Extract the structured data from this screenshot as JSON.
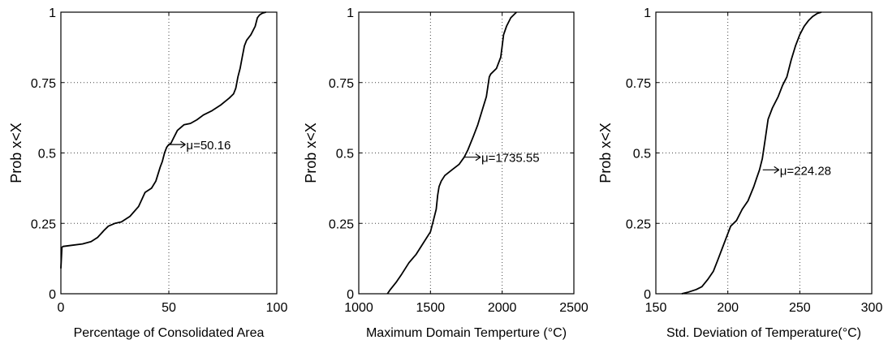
{
  "chart_data": [
    {
      "type": "line",
      "title": "",
      "xlabel": "Percentage of Consolidated Area",
      "ylabel": "Prob x<X",
      "xlim": [
        0,
        100
      ],
      "ylim": [
        0,
        1
      ],
      "xticks": [
        "0",
        "50",
        "100"
      ],
      "yticks": [
        "0",
        "0.25",
        "0.5",
        "0.75",
        "1"
      ],
      "grid": true,
      "annotation": "μ=50.16",
      "annotation_x": 50.16,
      "annotation_y": 0.53,
      "x": [
        0,
        0.5,
        1,
        5,
        10,
        14,
        17,
        20,
        22,
        25,
        28,
        32,
        36,
        39,
        42,
        44,
        46,
        47,
        48,
        49,
        50,
        51,
        52,
        54,
        57,
        60,
        63,
        66,
        70,
        74,
        78,
        80,
        81,
        82,
        83,
        84,
        85,
        86,
        88,
        90,
        91,
        92,
        93,
        94,
        95
      ],
      "y": [
        0.09,
        0.165,
        0.168,
        0.172,
        0.177,
        0.185,
        0.2,
        0.225,
        0.24,
        0.25,
        0.255,
        0.275,
        0.31,
        0.36,
        0.375,
        0.4,
        0.45,
        0.47,
        0.5,
        0.52,
        0.53,
        0.535,
        0.55,
        0.58,
        0.6,
        0.605,
        0.618,
        0.635,
        0.65,
        0.67,
        0.695,
        0.71,
        0.73,
        0.77,
        0.8,
        0.84,
        0.88,
        0.9,
        0.92,
        0.95,
        0.98,
        0.99,
        0.995,
        0.998,
        1.0
      ]
    },
    {
      "type": "line",
      "title": "",
      "xlabel": "Maximum Domain Temperture (°C)",
      "ylabel": "Prob x<X",
      "xlim": [
        1000,
        2500
      ],
      "ylim": [
        0,
        1
      ],
      "xticks": [
        "1000",
        "1500",
        "2000",
        "2500"
      ],
      "yticks": [
        "0",
        "0.25",
        "0.5",
        "0.75",
        "1"
      ],
      "grid": true,
      "annotation": "μ=1735.55",
      "annotation_x": 1735.55,
      "annotation_y": 0.485,
      "x": [
        1200,
        1220,
        1260,
        1300,
        1350,
        1400,
        1450,
        1500,
        1520,
        1540,
        1550,
        1560,
        1575,
        1600,
        1650,
        1700,
        1735,
        1760,
        1800,
        1830,
        1860,
        1890,
        1910,
        1920,
        1960,
        1990,
        2000,
        2010,
        2030,
        2060,
        2100
      ],
      "y": [
        0.0,
        0.015,
        0.04,
        0.07,
        0.11,
        0.14,
        0.18,
        0.22,
        0.26,
        0.3,
        0.35,
        0.38,
        0.4,
        0.42,
        0.44,
        0.46,
        0.485,
        0.51,
        0.56,
        0.6,
        0.65,
        0.7,
        0.77,
        0.78,
        0.8,
        0.84,
        0.88,
        0.92,
        0.95,
        0.98,
        1.0
      ]
    },
    {
      "type": "line",
      "title": "",
      "xlabel": "Std. Deviation of Temperature(°C)",
      "ylabel": "Prob x<X",
      "xlim": [
        150,
        300
      ],
      "ylim": [
        0,
        1
      ],
      "xticks": [
        "150",
        "200",
        "250",
        "300"
      ],
      "yticks": [
        "0",
        "0.25",
        "0.5",
        "0.75",
        "1"
      ],
      "grid": true,
      "annotation": "μ=224.28",
      "annotation_x": 224.28,
      "annotation_y": 0.44,
      "x": [
        168,
        172,
        178,
        182,
        186,
        190,
        193,
        196,
        199,
        202,
        206,
        210,
        214,
        218,
        220,
        222,
        224,
        226,
        228,
        231,
        235,
        238,
        241,
        244,
        247,
        250,
        253,
        256,
        259,
        262,
        265
      ],
      "y": [
        0.0,
        0.005,
        0.015,
        0.025,
        0.05,
        0.08,
        0.12,
        0.16,
        0.2,
        0.24,
        0.26,
        0.3,
        0.33,
        0.38,
        0.41,
        0.44,
        0.48,
        0.55,
        0.62,
        0.66,
        0.7,
        0.74,
        0.77,
        0.83,
        0.88,
        0.92,
        0.95,
        0.97,
        0.985,
        0.995,
        1.0
      ]
    }
  ]
}
